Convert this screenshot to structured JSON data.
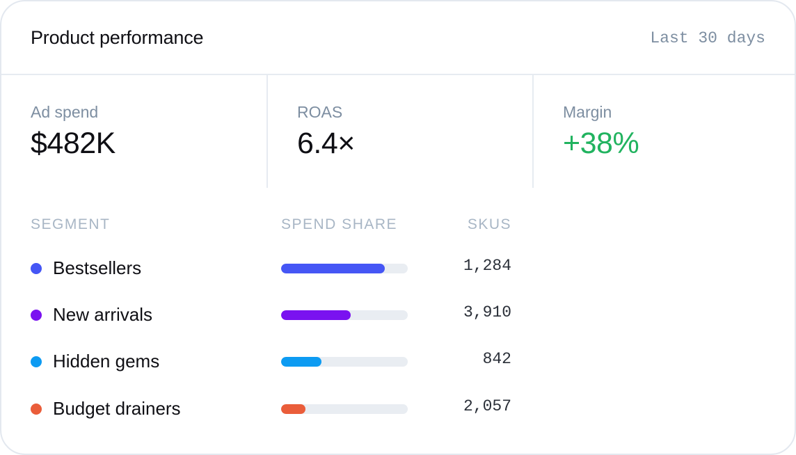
{
  "header": {
    "title": "Product performance",
    "range": "Last 30 days"
  },
  "stats": [
    {
      "label": "Ad spend",
      "value": "$482K"
    },
    {
      "label": "ROAS",
      "value": "6.4×"
    },
    {
      "label": "Margin",
      "value": "+38%",
      "color": "#21b35f"
    }
  ],
  "table": {
    "headers": {
      "segment": "SEGMENT",
      "share": "SPEND SHARE",
      "skus": "SKUS"
    },
    "rows": [
      {
        "segment": "Bestsellers",
        "share": 0.82,
        "skus": "1,284",
        "color": "#4556f5"
      },
      {
        "segment": "New arrivals",
        "share": 0.55,
        "skus": "3,910",
        "color": "#7a12f0"
      },
      {
        "segment": "Hidden gems",
        "share": 0.32,
        "skus": "842",
        "color": "#0d9bf2"
      },
      {
        "segment": "Budget drainers",
        "share": 0.19,
        "skus": "2,057",
        "color": "#ea5d3a"
      }
    ]
  }
}
